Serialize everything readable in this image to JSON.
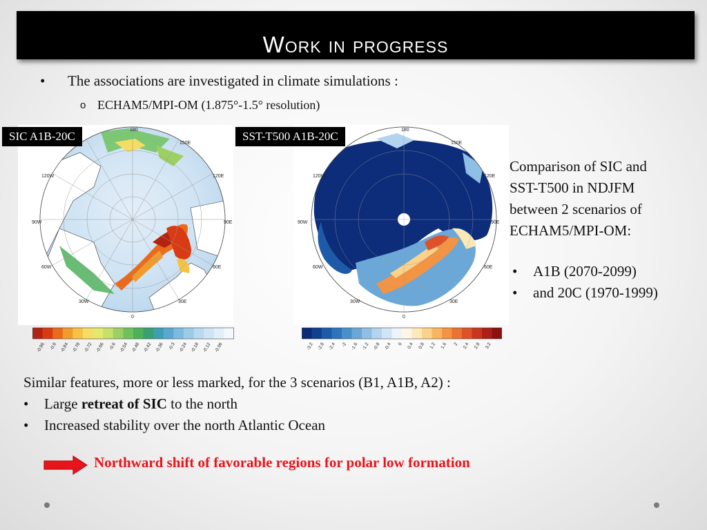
{
  "title": "Work in progress",
  "bullet": "The associations are investigated in climate simulations :",
  "sub_bullet": "ECHAM5/MPI-OM (1.875°-1.5° resolution)",
  "maps": [
    {
      "tag": "SIC A1B-20C",
      "lon_labels": {
        "n": "180",
        "ne": "150E",
        "nw": "120W",
        "e2": "120E",
        "w": "90W",
        "e": "90E",
        "sw": "60W",
        "se": "60E",
        "ssw": "30W",
        "sse": "30E",
        "s": "0"
      },
      "colorbar": {
        "colors": [
          "#b32410",
          "#d83a14",
          "#ea6a1c",
          "#f29b2d",
          "#f6c244",
          "#f4dd62",
          "#e4e86c",
          "#c6e06a",
          "#9dd064",
          "#6ec25e",
          "#4db05b",
          "#3aa072",
          "#3e9fb0",
          "#5aa8d2",
          "#7bbbe0",
          "#9ccbe8",
          "#b8d9ef",
          "#cfe5f5",
          "#e2eff9",
          "#f2f8fd"
        ],
        "ticks": [
          "-0.96",
          "-0.9",
          "-0.84",
          "-0.78",
          "-0.72",
          "-0.66",
          "-0.6",
          "-0.54",
          "-0.48",
          "-0.42",
          "-0.36",
          "-0.3",
          "-0.24",
          "-0.18",
          "-0.12",
          "-0.06"
        ]
      }
    },
    {
      "tag": "SST-T500 A1B-20C",
      "lon_labels": {
        "n": "180",
        "ne": "150E",
        "nw": "120W",
        "e2": "120E",
        "w": "90W",
        "e": "90E",
        "sw": "60W",
        "se": "60E",
        "ssw": "30W",
        "sse": "30E",
        "s": "0"
      },
      "colorbar": {
        "colors": [
          "#0a2a78",
          "#12408f",
          "#1d5aa8",
          "#2e74bb",
          "#4a8fca",
          "#6ba8d8",
          "#8fbfe4",
          "#b2d4ee",
          "#d0e5f5",
          "#ecf4fb",
          "#fdf6e6",
          "#fde8b8",
          "#fbd28a",
          "#f7b562",
          "#f29444",
          "#ea7232",
          "#dd5228",
          "#c8361f",
          "#ad2018",
          "#8c1010"
        ],
        "ticks": [
          "-3.2",
          "-2.8",
          "-2.4",
          "-2",
          "-1.6",
          "-1.2",
          "-0.8",
          "-0.4",
          "0",
          "0.4",
          "0.8",
          "1.2",
          "1.6",
          "2",
          "2.4",
          "2.8",
          "3.2"
        ]
      }
    }
  ],
  "side": {
    "lines": [
      "Comparison of SIC and",
      "SST-T500 in NDJFM",
      "between 2 scenarios of",
      "ECHAM5/MPI-OM:"
    ],
    "bullets": [
      "A1B (2070-2099)",
      "and 20C (1970-1999)"
    ]
  },
  "lower": {
    "intro": "Similar features, more or less marked, for the 3 scenarios (B1, A1B, A2) :",
    "b1_pre": "Large ",
    "b1_bold": "retreat of SIC",
    "b1_post": " to the north",
    "b2": "Increased stability over the north Atlantic Ocean"
  },
  "conclusion": "Northward shift of favorable regions for polar low formation",
  "colors": {
    "conclusion": "#e8141b",
    "arrow": "#e8141b",
    "title_bg": "#000000"
  },
  "bullet_glyph": "•",
  "sub_glyph": "o"
}
